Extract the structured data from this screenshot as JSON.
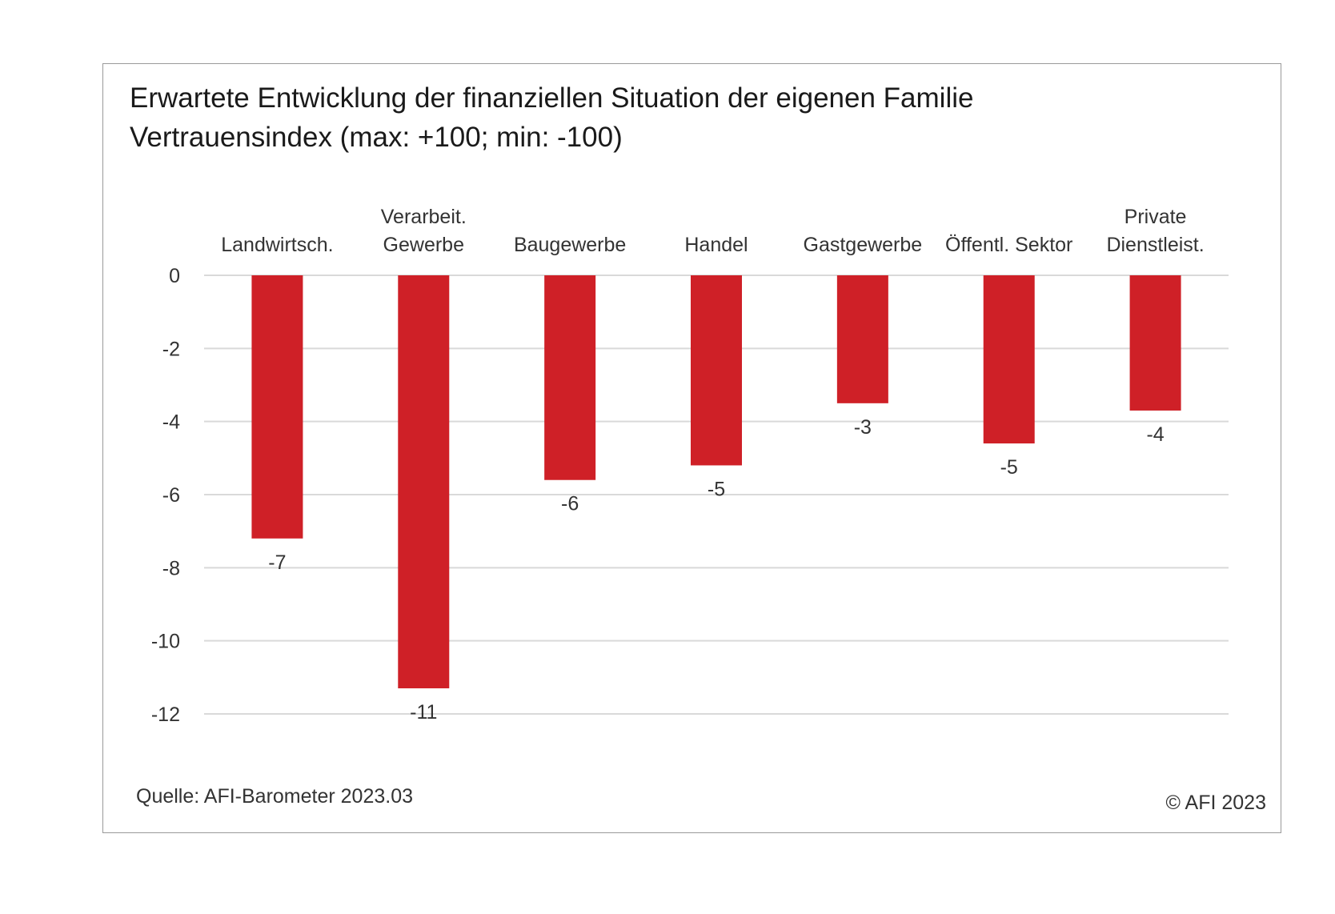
{
  "title_line1": "Erwartete Entwicklung der finanziellen Situation der eigenen Familie",
  "title_line2": "Vertrauensindex (max: +100; min: -100)",
  "source": "Quelle: AFI-Barometer 2023.03",
  "copyright": "© AFI 2023",
  "bar_color": "#cf2027",
  "chart_data": {
    "type": "bar",
    "title": "Erwartete Entwicklung der finanziellen Situation der eigenen Familie",
    "subtitle": "Vertrauensindex (max: +100; min: -100)",
    "categories": [
      [
        "Landwirtsch."
      ],
      [
        "Verarbeit.",
        "Gewerbe"
      ],
      [
        "Baugewerbe"
      ],
      [
        "Handel"
      ],
      [
        "Gastgewerbe"
      ],
      [
        "Öffentl. Sektor"
      ],
      [
        "Private",
        "Dienstleist."
      ]
    ],
    "values": [
      -7.2,
      -11.3,
      -5.6,
      -5.2,
      -3.5,
      -4.6,
      -3.7
    ],
    "data_labels": [
      "-7",
      "-11",
      "-6",
      "-5",
      "-3",
      "-5",
      "-4"
    ],
    "ylim": [
      -12,
      0
    ],
    "yticks": [
      0,
      -2,
      -4,
      -6,
      -8,
      -10,
      -12
    ],
    "ytick_labels": [
      "0",
      "-2",
      "-4",
      "-6",
      "-8",
      "-10",
      "-12"
    ],
    "grid": true,
    "category_axis_position": "top"
  }
}
